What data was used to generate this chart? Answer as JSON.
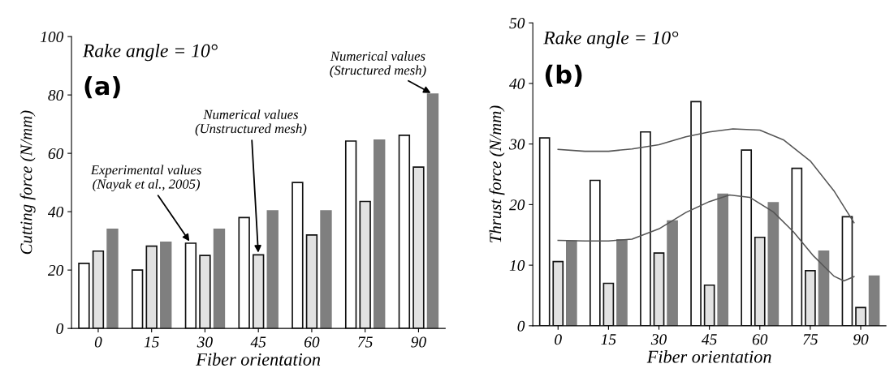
{
  "chart_data": [
    {
      "type": "bar",
      "xlabel": "Fiber orientation",
      "ylabel": "Cutting force (N/mm)",
      "x": [
        0,
        15,
        30,
        45,
        60,
        75,
        90
      ],
      "xlim": [
        -7.5,
        97.5
      ],
      "xticks": [
        0,
        15,
        30,
        45,
        60,
        75,
        90
      ],
      "ylim": [
        0,
        100
      ],
      "yticks": [
        0,
        20,
        40,
        60,
        80,
        100
      ],
      "grid": false,
      "legend": false,
      "series": [
        {
          "color": "#ffffff",
          "values": [
            22.3,
            20,
            29.2,
            38,
            50,
            64.2,
            66.2
          ]
        },
        {
          "color": "#e2e2e2",
          "values": [
            26.5,
            28.2,
            25,
            25.2,
            32,
            43.5,
            55.3
          ]
        },
        {
          "color": "#7f7f7f",
          "values": [
            34,
            29.5,
            34,
            40.3,
            40.3,
            64.5,
            80.3
          ]
        }
      ],
      "annotations": [
        "Rake angle = 10°",
        "(a)",
        {
          "text": "Experimental values\n(Nayak et al., 2005)",
          "x": 26,
          "y": 29.2
        },
        {
          "text": "Numerical values\n(Unstructured mesh)",
          "x": 45,
          "y": 25.2
        },
        {
          "text": "Numerical values\n(Structured mesh)",
          "x": 94,
          "y": 80.3
        }
      ]
    },
    {
      "type": "bar",
      "xlabel": "Fiber orientation",
      "ylabel": "Thrust force (N/mm)",
      "x": [
        0,
        15,
        30,
        45,
        60,
        75,
        90
      ],
      "xlim": [
        -7.5,
        97.5
      ],
      "xticks": [
        0,
        15,
        30,
        45,
        60,
        75,
        90
      ],
      "ylim": [
        0,
        50
      ],
      "yticks": [
        0,
        10,
        20,
        30,
        40,
        50
      ],
      "grid": false,
      "legend": false,
      "series": [
        {
          "color": "#ffffff",
          "values": [
            31,
            24,
            32,
            37,
            29,
            26,
            18
          ]
        },
        {
          "color": "#e2e2e2",
          "values": [
            10.6,
            7,
            12,
            6.7,
            14.6,
            9.1,
            3
          ]
        },
        {
          "color": "#7f7f7f",
          "values": [
            14,
            14.2,
            17.3,
            21.7,
            20.3,
            12.3,
            8.2
          ]
        },
        {
          "type": "line",
          "color": "#555555",
          "x": [
            0,
            8,
            15,
            22,
            30,
            38,
            45,
            52,
            60,
            67,
            75,
            82,
            88
          ],
          "values": [
            29.1,
            28.8,
            28.8,
            29.2,
            29.9,
            31.2,
            32,
            32.5,
            32.3,
            30.7,
            27.2,
            22.3,
            17
          ]
        },
        {
          "type": "line",
          "color": "#555555",
          "x": [
            0,
            8,
            15,
            22,
            30,
            38,
            45,
            51,
            57,
            64,
            70,
            76,
            82,
            85,
            88
          ],
          "values": [
            14.1,
            14,
            14,
            14.3,
            16,
            18.7,
            20.5,
            21.6,
            21.2,
            18.8,
            15.5,
            11.5,
            8.2,
            7.4,
            8.1
          ]
        }
      ],
      "annotations": [
        "Rake angle = 10°",
        "(b)"
      ]
    }
  ]
}
